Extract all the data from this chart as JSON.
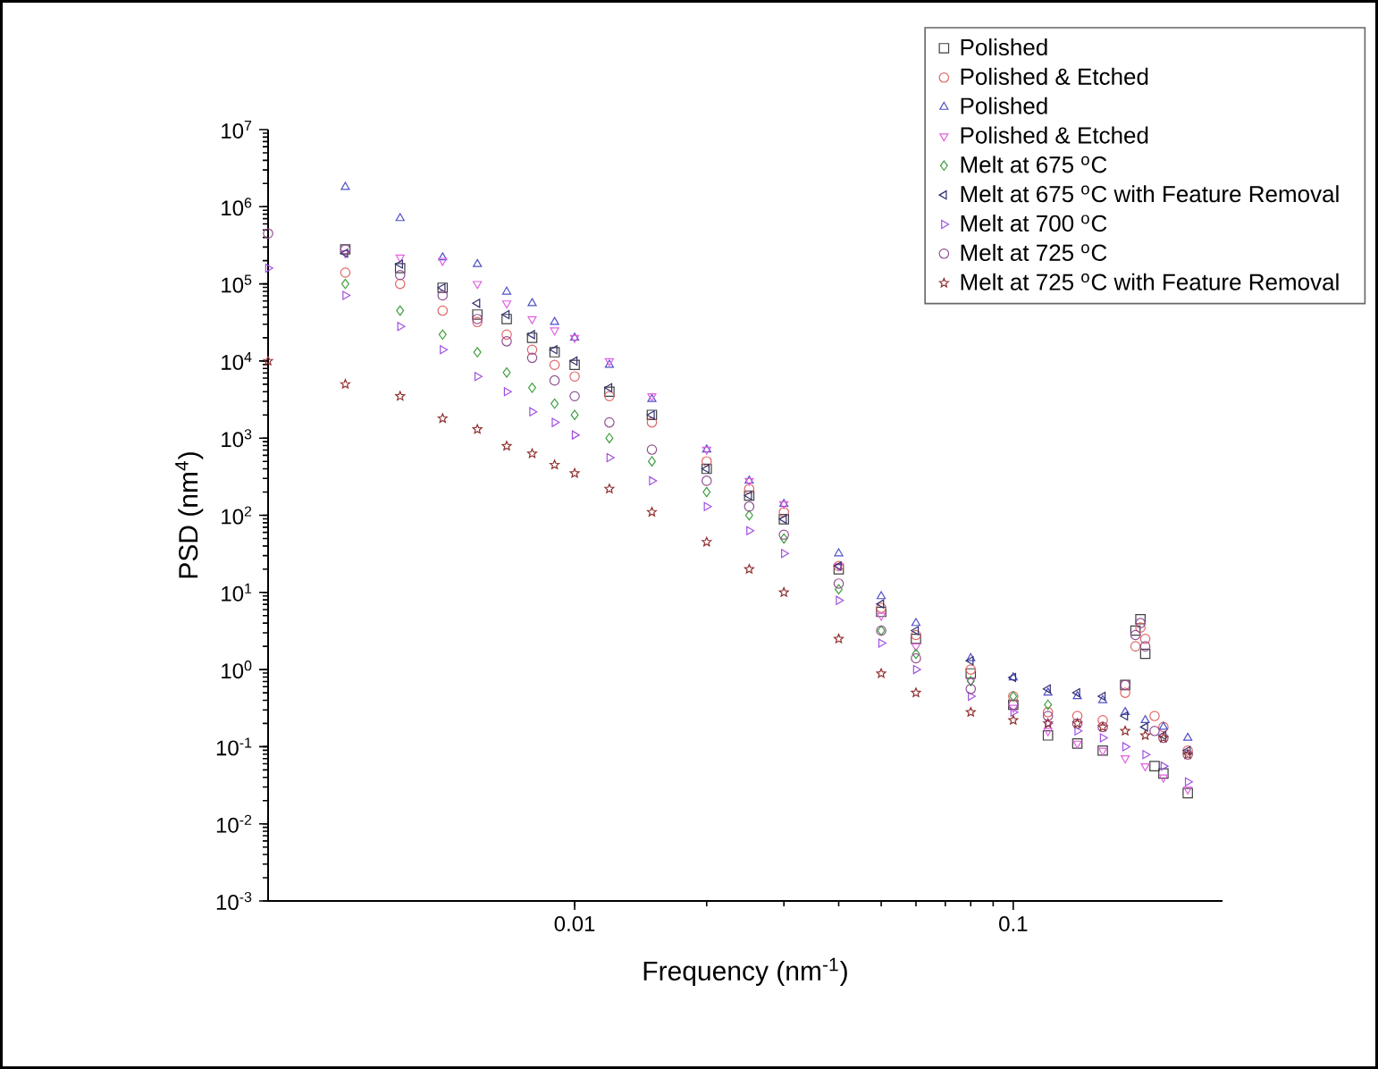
{
  "chart_data": {
    "type": "scatter",
    "xlabel": "Frequency (nm$^{-1}$)",
    "ylabel": "PSD (nm$^{4}$)",
    "log": "xy",
    "legend": "top right",
    "xlim": [
      0.002,
      0.3
    ],
    "xticks": [
      0.01,
      0.1
    ],
    "ylim": [
      0.001,
      10000000
    ],
    "yticks": [
      {
        "value": 0.001,
        "label": "10$^{-3}$"
      },
      {
        "value": 0.01,
        "label": "10$^{-2}$"
      },
      {
        "value": 0.1,
        "label": "10$^{-1}$"
      },
      {
        "value": 1,
        "label": "10$^{0}$"
      },
      {
        "value": 10,
        "label": "10$^{1}$"
      },
      {
        "value": 100,
        "label": "10$^{2}$"
      },
      {
        "value": 1000,
        "label": "10$^{3}$"
      },
      {
        "value": 10000,
        "label": "10$^{4}$"
      },
      {
        "value": 100000,
        "label": "10$^{5}$"
      },
      {
        "value": 1000000,
        "label": "10$^{6}$"
      },
      {
        "value": 10000000,
        "label": "10$^{7}$"
      }
    ],
    "series": [
      {
        "name": "Polished",
        "color": "#404040",
        "marker": "square",
        "x": [
          0.003,
          0.004,
          0.005,
          0.006,
          0.007,
          0.008,
          0.009,
          0.01,
          0.012,
          0.015,
          0.02,
          0.025,
          0.03,
          0.04,
          0.05,
          0.06,
          0.08,
          0.1,
          0.12,
          0.14,
          0.16,
          0.18,
          0.19,
          0.195,
          0.2,
          0.21,
          0.22,
          0.25
        ],
        "values": [
          280000,
          160000,
          89000,
          40000,
          35000,
          20000,
          13000,
          8900,
          4000,
          2000,
          400,
          180,
          89,
          20,
          5.6,
          2.5,
          0.89,
          0.35,
          0.14,
          0.11,
          0.089,
          0.63,
          3.2,
          4.5,
          1.6,
          0.056,
          0.045,
          0.025
        ]
      },
      {
        "name": "Polished & Etched",
        "color": "#e06666",
        "marker": "circle",
        "x": [
          0.003,
          0.004,
          0.005,
          0.006,
          0.007,
          0.008,
          0.009,
          0.01,
          0.012,
          0.015,
          0.02,
          0.025,
          0.03,
          0.04,
          0.05,
          0.06,
          0.08,
          0.1,
          0.12,
          0.14,
          0.16,
          0.18,
          0.19,
          0.195,
          0.2,
          0.21,
          0.22,
          0.25
        ],
        "values": [
          140000,
          100000,
          45000,
          32000,
          22000,
          14000,
          8900,
          6300,
          3500,
          1600,
          500,
          220,
          110,
          22,
          6.3,
          2.8,
          1.0,
          0.45,
          0.28,
          0.25,
          0.22,
          0.5,
          2.0,
          3.5,
          2.5,
          0.25,
          0.18,
          0.089
        ]
      },
      {
        "name": "Polished",
        "color": "#5050c8",
        "marker": "triangle",
        "x": [
          0.003,
          0.004,
          0.005,
          0.006,
          0.007,
          0.008,
          0.009,
          0.01,
          0.012,
          0.015,
          0.02,
          0.025,
          0.03,
          0.04,
          0.05,
          0.06,
          0.08,
          0.1,
          0.12,
          0.14,
          0.16,
          0.18,
          0.2,
          0.22,
          0.25
        ],
        "values": [
          1800000,
          710000,
          220000,
          180000,
          79000,
          56000,
          32000,
          20000,
          8900,
          3200,
          710,
          280,
          140,
          32,
          8.9,
          4.0,
          1.4,
          0.79,
          0.5,
          0.45,
          0.4,
          0.28,
          0.22,
          0.18,
          0.13
        ]
      },
      {
        "name": "Polished & Etched",
        "color": "#e060e0",
        "marker": "triangle-down",
        "x": [
          0.003,
          0.004,
          0.005,
          0.006,
          0.007,
          0.008,
          0.009,
          0.01,
          0.012,
          0.015,
          0.02,
          0.025,
          0.03,
          0.04,
          0.05,
          0.06,
          0.08,
          0.1,
          0.12,
          0.14,
          0.16,
          0.18,
          0.2,
          0.22,
          0.25
        ],
        "values": [
          250000,
          220000,
          200000,
          100000,
          56000,
          35000,
          25000,
          20000,
          10000,
          3500,
          710,
          280,
          140,
          22,
          5.0,
          2.0,
          0.71,
          0.32,
          0.16,
          0.11,
          0.089,
          0.071,
          0.056,
          0.04,
          0.028
        ]
      },
      {
        "name": "Melt at 675 $^{o}$C",
        "color": "#40a040",
        "marker": "diamond",
        "x": [
          0.003,
          0.004,
          0.005,
          0.006,
          0.007,
          0.008,
          0.009,
          0.01,
          0.012,
          0.015,
          0.02,
          0.025,
          0.03,
          0.04,
          0.05,
          0.06,
          0.08,
          0.1,
          0.12
        ],
        "values": [
          100000,
          45000,
          22000,
          13000,
          7100,
          4500,
          2800,
          2000,
          1000,
          500,
          200,
          100,
          50,
          11,
          3.2,
          1.6,
          0.71,
          0.45,
          0.35
        ]
      },
      {
        "name": "Melt at 675 $^{o}$C with Feature Removal",
        "color": "#303070",
        "marker": "triangle-left",
        "x": [
          0.003,
          0.004,
          0.005,
          0.006,
          0.007,
          0.008,
          0.009,
          0.01,
          0.012,
          0.015,
          0.02,
          0.025,
          0.03,
          0.04,
          0.05,
          0.06,
          0.08,
          0.1,
          0.12,
          0.14,
          0.16,
          0.18,
          0.2,
          0.22,
          0.25
        ],
        "values": [
          250000,
          180000,
          89000,
          56000,
          40000,
          22000,
          14000,
          10000,
          4500,
          2000,
          400,
          180,
          89,
          22,
          7.1,
          3.2,
          1.3,
          0.79,
          0.56,
          0.5,
          0.45,
          0.25,
          0.18,
          0.14,
          0.089
        ]
      },
      {
        "name": "Melt at 700 $^{o}$C",
        "color": "#a050e0",
        "marker": "triangle-right",
        "x": [
          0.002,
          0.003,
          0.004,
          0.005,
          0.006,
          0.007,
          0.008,
          0.009,
          0.01,
          0.012,
          0.015,
          0.02,
          0.025,
          0.03,
          0.04,
          0.05,
          0.06,
          0.08,
          0.1,
          0.12,
          0.14,
          0.16,
          0.18,
          0.2,
          0.22,
          0.25
        ],
        "values": [
          160000,
          71000,
          28000,
          14000,
          6300,
          4000,
          2200,
          1600,
          1100,
          560,
          280,
          130,
          63,
          32,
          7.9,
          2.2,
          1.0,
          0.45,
          0.28,
          0.2,
          0.16,
          0.13,
          0.1,
          0.079,
          0.056,
          0.035
        ]
      },
      {
        "name": "Melt at 725 $^{o}$C",
        "color": "#905090",
        "marker": "circle",
        "x": [
          0.002,
          0.003,
          0.004,
          0.005,
          0.006,
          0.007,
          0.008,
          0.009,
          0.01,
          0.012,
          0.015,
          0.02,
          0.025,
          0.03,
          0.04,
          0.05,
          0.06,
          0.08,
          0.1,
          0.12,
          0.14,
          0.16,
          0.18,
          0.19,
          0.195,
          0.2,
          0.21,
          0.22,
          0.25
        ],
        "values": [
          450000,
          280000,
          130000,
          71000,
          35000,
          18000,
          11000,
          5600,
          3500,
          1600,
          710,
          280,
          130,
          56,
          13,
          3.2,
          1.4,
          0.56,
          0.35,
          0.25,
          0.2,
          0.18,
          0.63,
          2.8,
          4.0,
          2.0,
          0.16,
          0.13,
          0.079
        ]
      },
      {
        "name": "Melt at 725 $^{o}$C with Feature Removal",
        "color": "#903030",
        "marker": "star",
        "x": [
          0.002,
          0.003,
          0.004,
          0.005,
          0.006,
          0.007,
          0.008,
          0.009,
          0.01,
          0.012,
          0.015,
          0.02,
          0.025,
          0.03,
          0.04,
          0.05,
          0.06,
          0.08,
          0.1,
          0.12,
          0.14,
          0.16,
          0.18,
          0.2,
          0.22,
          0.25
        ],
        "values": [
          10000,
          5000,
          3500,
          1800,
          1300,
          790,
          630,
          450,
          350,
          220,
          110,
          45,
          20,
          10,
          2.5,
          0.89,
          0.5,
          0.28,
          0.22,
          0.2,
          0.2,
          0.18,
          0.16,
          0.14,
          0.13,
          0.079
        ]
      }
    ]
  }
}
